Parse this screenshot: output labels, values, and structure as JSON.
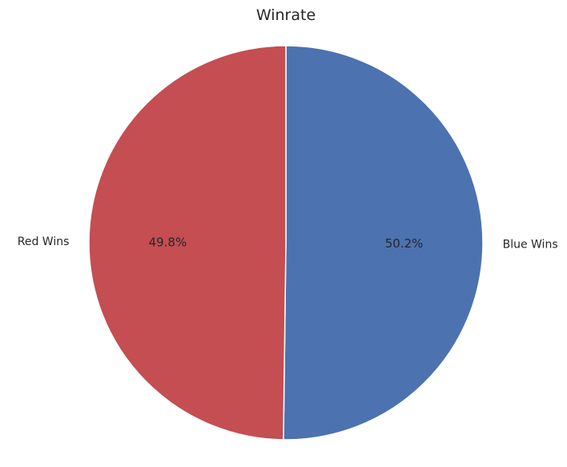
{
  "chart_data": {
    "type": "pie",
    "title": "Winrate",
    "labels": [
      "Blue Wins",
      "Red Wins"
    ],
    "values": [
      50.2,
      49.8
    ],
    "pct_labels": [
      "50.2%",
      "49.8%"
    ],
    "colors": [
      "#4c72b0",
      "#c44e52"
    ],
    "start_angle_deg": 90,
    "direction": "clockwise"
  }
}
